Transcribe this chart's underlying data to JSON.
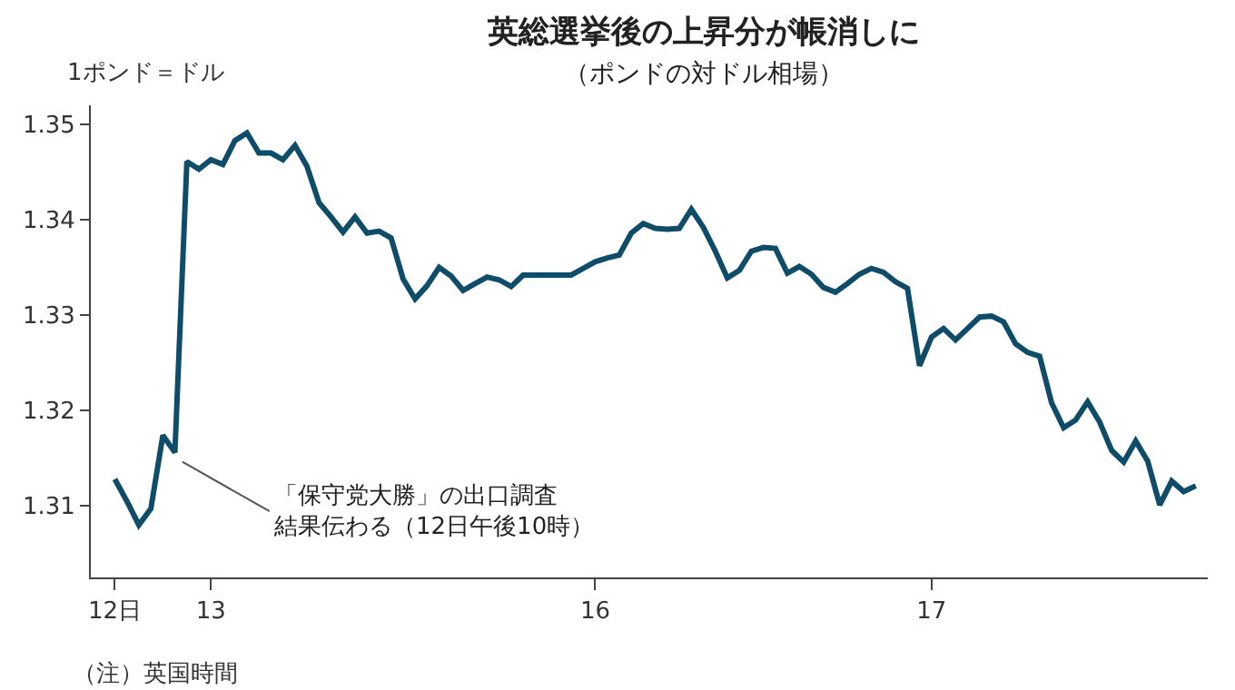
{
  "chart_data": {
    "type": "line",
    "title": "英総選挙後の上昇分が帳消しに",
    "subtitle": "（ポンドの対ドル相場）",
    "ylabel": "1ポンド＝ドル",
    "categories": [
      "12日",
      null,
      null,
      null,
      null,
      null,
      null,
      null,
      "13",
      null,
      null,
      null,
      null,
      null,
      null,
      null,
      null,
      null,
      null,
      null,
      null,
      null,
      null,
      null,
      null,
      null,
      null,
      null,
      null,
      null,
      null,
      null,
      null,
      null,
      null,
      null,
      null,
      null,
      null,
      null,
      "16",
      null,
      null,
      null,
      null,
      null,
      null,
      null,
      null,
      null,
      null,
      null,
      null,
      null,
      null,
      null,
      null,
      null,
      null,
      null,
      null,
      null,
      null,
      null,
      null,
      null,
      null,
      null,
      "17",
      null,
      null,
      null,
      null,
      null,
      null,
      null,
      null,
      null,
      null,
      null,
      null,
      null,
      null,
      null,
      null,
      null,
      null,
      null,
      null,
      null,
      null
    ],
    "series": [
      {
        "color": "#0f4c6a",
        "values": [
          1.3128,
          1.3105,
          1.308,
          1.3097,
          1.3174,
          1.3156,
          1.3461,
          1.3453,
          1.3463,
          1.3458,
          1.3483,
          1.3491,
          1.347,
          1.347,
          1.3463,
          1.3478,
          1.3456,
          1.3418,
          1.3403,
          1.3387,
          1.3403,
          1.3386,
          1.3388,
          1.3381,
          1.3338,
          1.3317,
          1.3331,
          1.335,
          1.3341,
          1.3326,
          1.3333,
          1.334,
          1.3337,
          1.333,
          1.3342,
          1.3342,
          1.3342,
          1.3342,
          1.3342,
          1.3349,
          1.3356,
          1.336,
          1.3363,
          1.3386,
          1.3396,
          1.3391,
          1.339,
          1.3391,
          1.3411,
          1.3392,
          1.3367,
          1.3339,
          1.3347,
          1.3367,
          1.3371,
          1.337,
          1.3344,
          1.3351,
          1.3343,
          1.3329,
          1.3324,
          1.3333,
          1.3343,
          1.3349,
          1.3345,
          1.3335,
          1.3328,
          1.3247,
          1.3277,
          1.3286,
          1.3274,
          1.3286,
          1.3298,
          1.3299,
          1.3293,
          1.327,
          1.3261,
          1.3257,
          1.3208,
          1.3182,
          1.319,
          1.3209,
          1.3188,
          1.3158,
          1.3146,
          1.3168,
          1.3147,
          1.3101,
          1.3126,
          1.3115,
          1.3121
        ]
      }
    ],
    "ylim": [
      1.3025,
      1.352
    ],
    "yticks": [
      1.31,
      1.32,
      1.33,
      1.34,
      1.35
    ],
    "grid": false,
    "line_style": "solid",
    "marker": "none",
    "annotations": [
      "「保守党大勝」の出口調査結果伝わる（12日午後10時）",
      "（注）英国時間"
    ]
  }
}
